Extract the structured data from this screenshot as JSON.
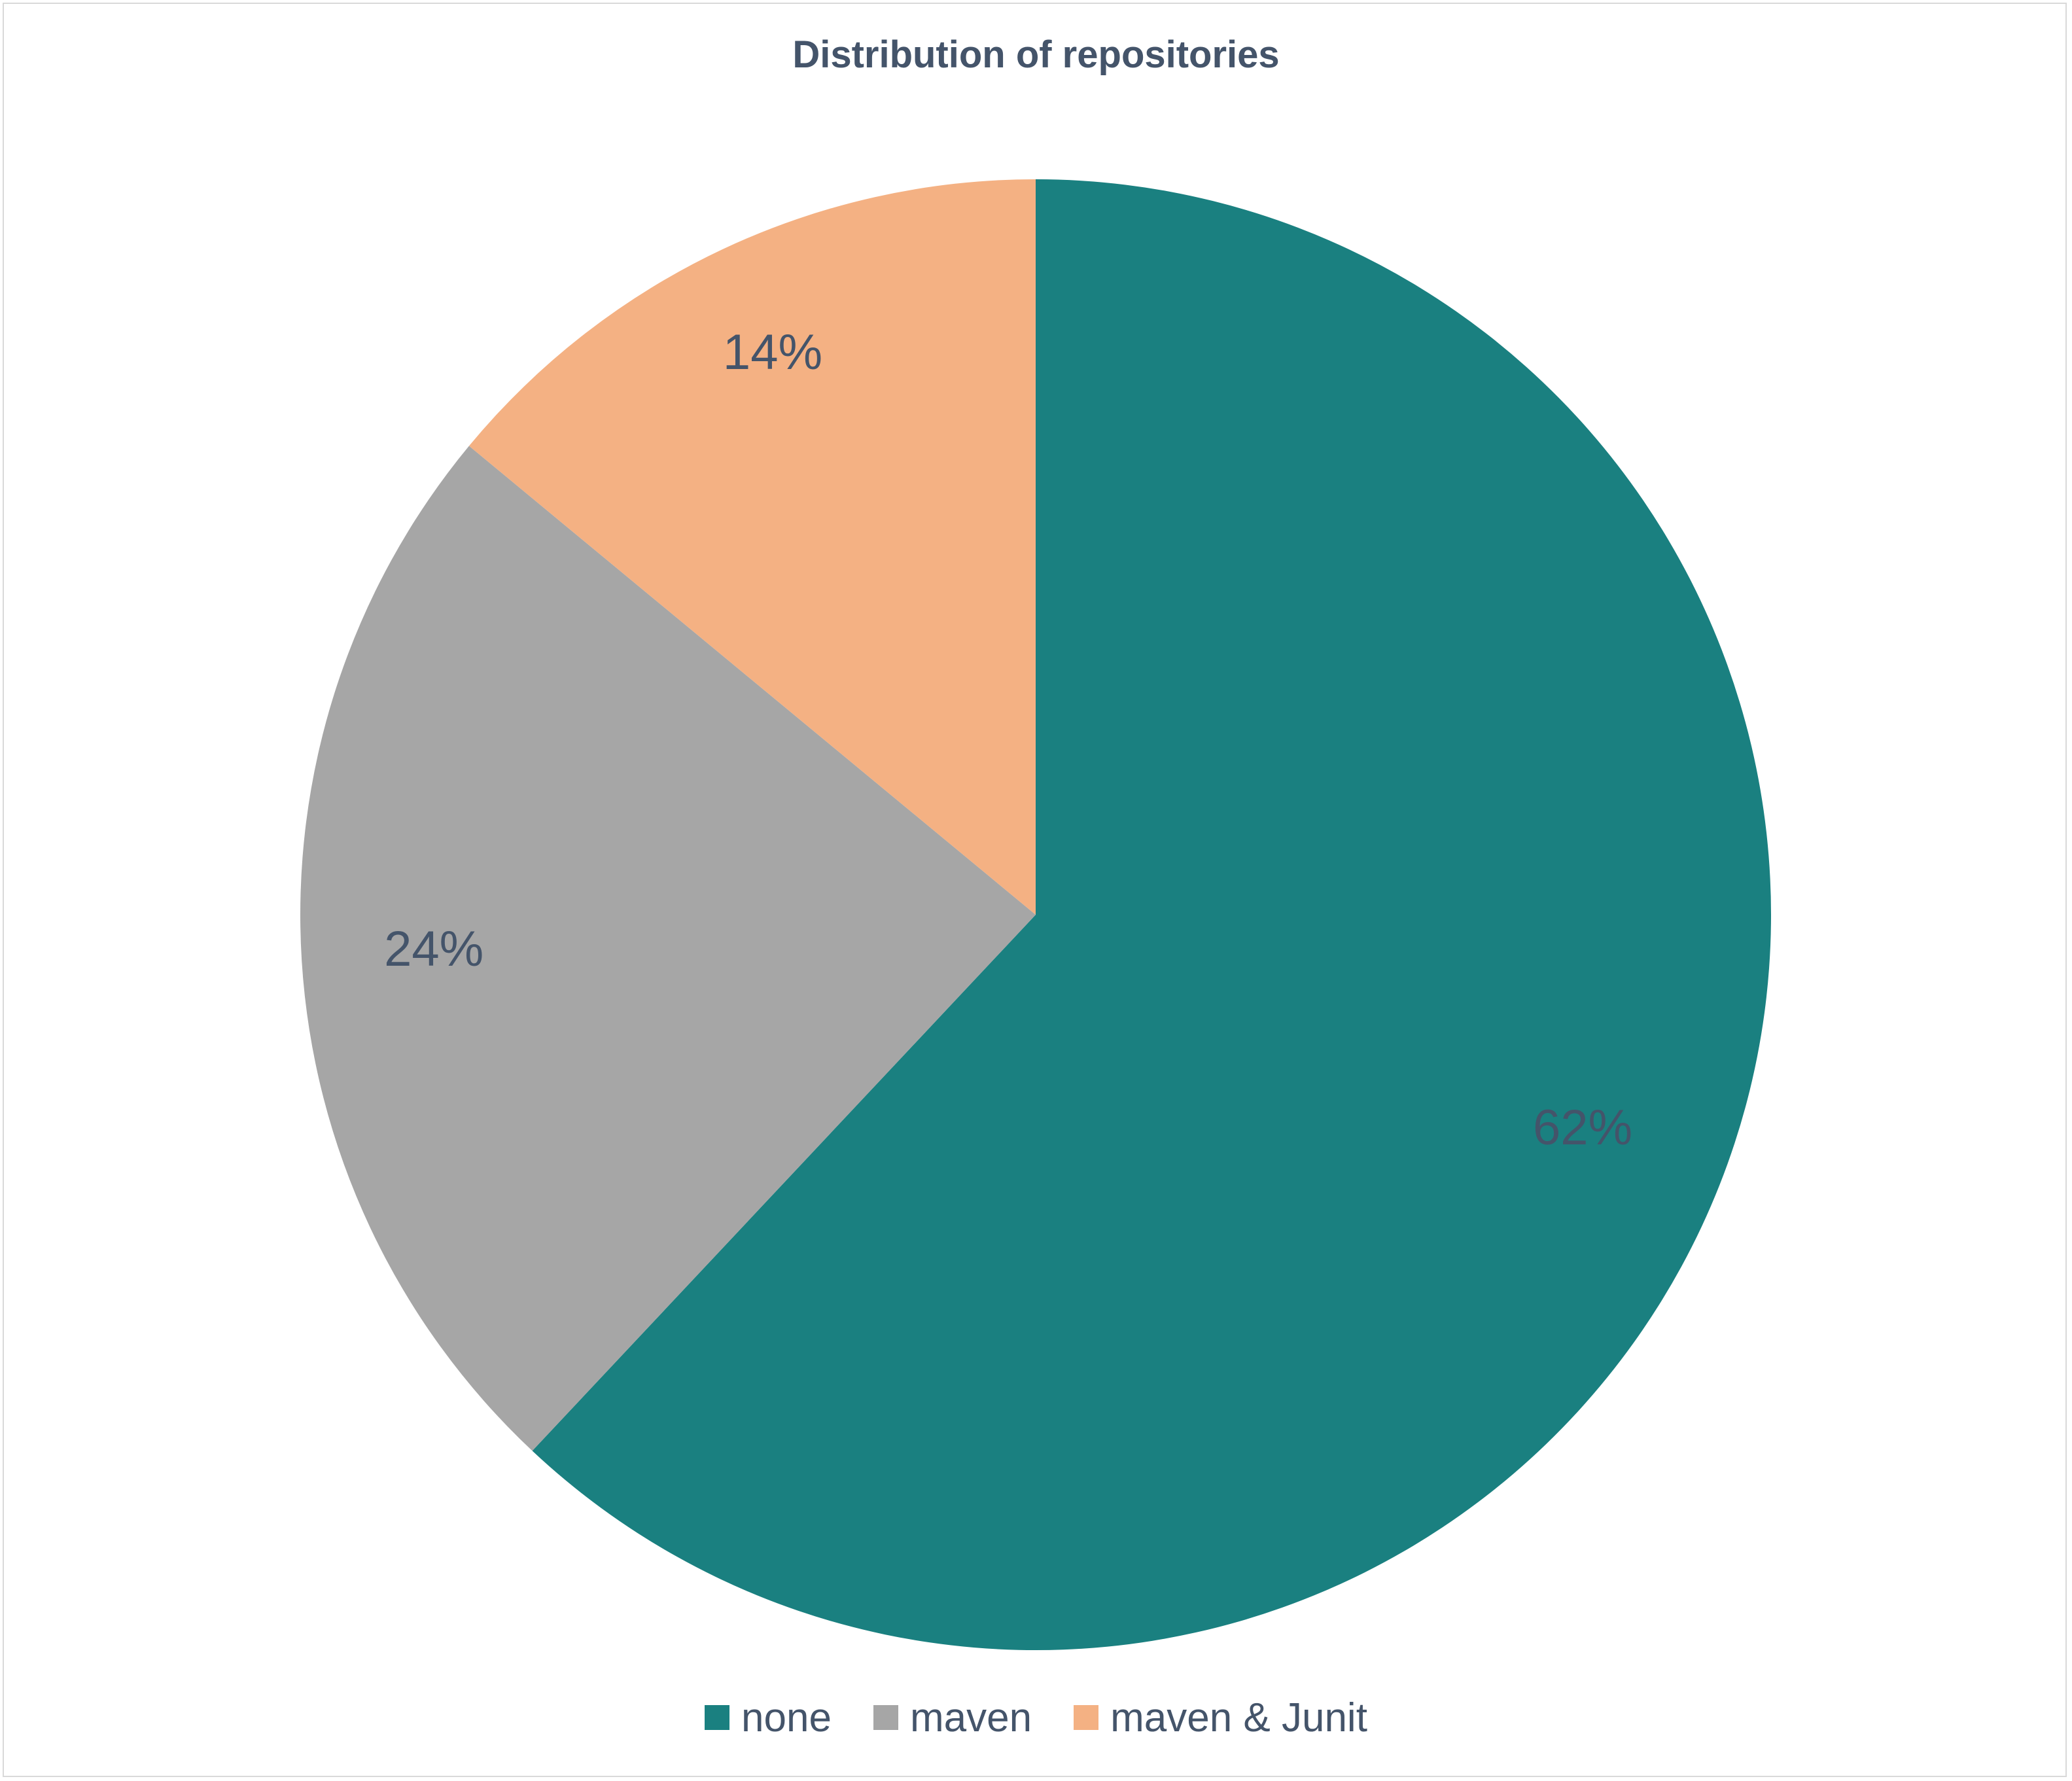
{
  "chart_data": {
    "type": "pie",
    "title": "Distribution of repositories",
    "categories": [
      "none",
      "maven",
      "maven & Junit"
    ],
    "values": [
      62,
      24,
      14
    ],
    "labels": [
      "62%",
      "24%",
      "14%"
    ],
    "colors": [
      "#1a8080",
      "#a6a6a6",
      "#f4b183"
    ],
    "legend": "bottom"
  }
}
